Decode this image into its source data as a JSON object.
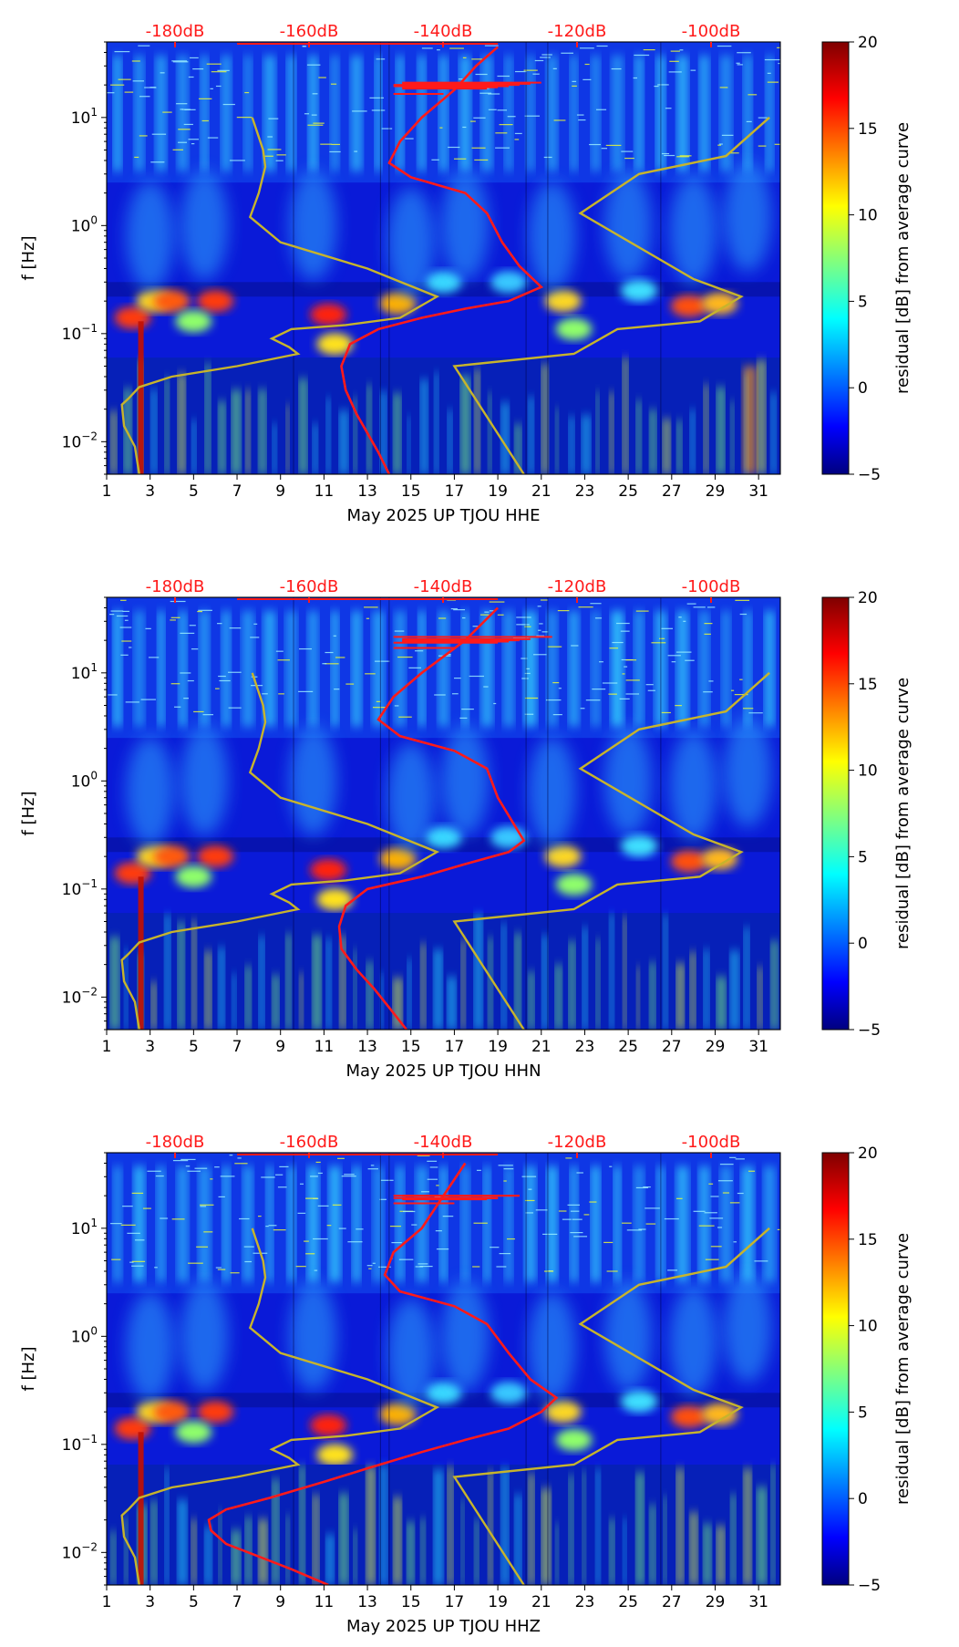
{
  "chart_data": [
    {
      "type": "heatmap",
      "xlabel": "May 2025 UP TJOU  HHE",
      "ylabel": "f [Hz]",
      "x_ticks": [
        "1",
        "3",
        "5",
        "7",
        "9",
        "11",
        "13",
        "15",
        "17",
        "19",
        "21",
        "23",
        "25",
        "27",
        "29",
        "31"
      ],
      "y_ticks": [
        "10^-2",
        "10^-1",
        "10^0",
        "10^1"
      ],
      "top_ticks": [
        "-180dB",
        "-160dB",
        "-140dB",
        "-120dB",
        "-100dB"
      ],
      "colorbar": {
        "label": "residual [dB] from average curve",
        "range": [
          -5,
          20
        ],
        "ticks": [
          "20",
          "15",
          "10",
          "5",
          "0",
          "−5"
        ]
      },
      "ylim": [
        0.005,
        50
      ],
      "xlim": [
        1,
        32
      ],
      "series": [
        {
          "color": "#ff1a1a",
          "points": [
            [
              14.0,
              0.005
            ],
            [
              13.5,
              0.008
            ],
            [
              13.0,
              0.012
            ],
            [
              12.5,
              0.018
            ],
            [
              12.0,
              0.03
            ],
            [
              11.8,
              0.05
            ],
            [
              12.2,
              0.08
            ],
            [
              13.5,
              0.11
            ],
            [
              15.5,
              0.14
            ],
            [
              17.5,
              0.17
            ],
            [
              19.5,
              0.2
            ],
            [
              21.0,
              0.27
            ],
            [
              20.0,
              0.42
            ],
            [
              19.2,
              0.7
            ],
            [
              18.5,
              1.3
            ],
            [
              17.5,
              2.0
            ],
            [
              15.0,
              2.8
            ],
            [
              14.0,
              3.8
            ],
            [
              14.5,
              6.0
            ],
            [
              15.5,
              10.0
            ],
            [
              17.0,
              18.0
            ],
            [
              18.0,
              30.0
            ],
            [
              19.0,
              45.0
            ]
          ],
          "spikes": [
            [
              5.5,
              19.5
            ],
            [
              7.0,
              16.5
            ],
            [
              9.0,
              20.0
            ],
            [
              12.0,
              18.5
            ],
            [
              16.0,
              21.0
            ],
            [
              22.0,
              19.0
            ],
            [
              25.0,
              20.5
            ],
            [
              32.0,
              19.5
            ]
          ]
        },
        {
          "color": "#c7b42c",
          "points": [
            [
              2.5,
              0.005
            ],
            [
              2.3,
              0.009
            ],
            [
              1.8,
              0.014
            ],
            [
              1.7,
              0.022
            ],
            [
              2.0,
              0.025
            ],
            [
              2.5,
              0.032
            ],
            [
              4.0,
              0.04
            ],
            [
              7.0,
              0.05
            ],
            [
              9.8,
              0.065
            ],
            [
              9.4,
              0.075
            ],
            [
              8.6,
              0.09
            ],
            [
              9.5,
              0.11
            ],
            [
              12.0,
              0.12
            ],
            [
              14.5,
              0.14
            ],
            [
              16.2,
              0.22
            ],
            [
              13.0,
              0.4
            ],
            [
              9.0,
              0.7
            ],
            [
              7.6,
              1.2
            ],
            [
              8.0,
              2.0
            ],
            [
              8.3,
              3.5
            ],
            [
              8.2,
              5.0
            ],
            [
              7.7,
              10.0
            ]
          ]
        },
        {
          "color": "#c7b42c",
          "points": [
            [
              20.2,
              0.005
            ],
            [
              17.0,
              0.05
            ],
            [
              22.5,
              0.065
            ],
            [
              24.5,
              0.11
            ],
            [
              28.3,
              0.13
            ],
            [
              30.2,
              0.22
            ],
            [
              28.0,
              0.32
            ],
            [
              22.8,
              1.3
            ],
            [
              25.5,
              3.0
            ],
            [
              29.5,
              4.4
            ],
            [
              31.5,
              10.0
            ]
          ]
        }
      ]
    },
    {
      "type": "heatmap",
      "xlabel": "May 2025 UP TJOU  HHN",
      "ylabel": "f [Hz]",
      "x_ticks": [
        "1",
        "3",
        "5",
        "7",
        "9",
        "11",
        "13",
        "15",
        "17",
        "19",
        "21",
        "23",
        "25",
        "27",
        "29",
        "31"
      ],
      "y_ticks": [
        "10^-2",
        "10^-1",
        "10^0",
        "10^1"
      ],
      "top_ticks": [
        "-180dB",
        "-160dB",
        "-140dB",
        "-120dB",
        "-100dB"
      ],
      "colorbar": {
        "label": "residual [dB] from average curve",
        "range": [
          -5,
          20
        ],
        "ticks": [
          "20",
          "15",
          "10",
          "5",
          "0",
          "−5"
        ]
      },
      "ylim": [
        0.005,
        50
      ],
      "xlim": [
        1,
        32
      ],
      "series": [
        {
          "color": "#ff1a1a",
          "points": [
            [
              14.8,
              0.005
            ],
            [
              14.0,
              0.008
            ],
            [
              13.3,
              0.012
            ],
            [
              12.5,
              0.018
            ],
            [
              11.8,
              0.028
            ],
            [
              11.7,
              0.045
            ],
            [
              12.0,
              0.07
            ],
            [
              13.0,
              0.1
            ],
            [
              15.5,
              0.13
            ],
            [
              17.5,
              0.17
            ],
            [
              19.5,
              0.22
            ],
            [
              20.2,
              0.28
            ],
            [
              19.8,
              0.38
            ],
            [
              19.0,
              0.7
            ],
            [
              18.5,
              1.3
            ],
            [
              17.0,
              1.9
            ],
            [
              14.5,
              2.6
            ],
            [
              13.5,
              3.7
            ],
            [
              14.2,
              6.0
            ],
            [
              15.5,
              10.0
            ],
            [
              17.5,
              20.0
            ],
            [
              19.0,
              40.0
            ]
          ],
          "spikes": [
            [
              7.0,
              21.5
            ],
            [
              9.0,
              19.0
            ],
            [
              10.0,
              17.0
            ],
            [
              16.0,
              19.5
            ],
            [
              22.0,
              20.0
            ],
            [
              25.0,
              20.5
            ],
            [
              32.0,
              19.5
            ]
          ]
        },
        {
          "color": "#c7b42c",
          "points": [
            [
              2.5,
              0.005
            ],
            [
              2.3,
              0.009
            ],
            [
              1.8,
              0.014
            ],
            [
              1.7,
              0.022
            ],
            [
              2.0,
              0.025
            ],
            [
              2.5,
              0.032
            ],
            [
              4.0,
              0.04
            ],
            [
              7.0,
              0.05
            ],
            [
              9.8,
              0.065
            ],
            [
              9.4,
              0.075
            ],
            [
              8.6,
              0.09
            ],
            [
              9.5,
              0.11
            ],
            [
              12.0,
              0.12
            ],
            [
              14.5,
              0.14
            ],
            [
              16.2,
              0.22
            ],
            [
              13.0,
              0.4
            ],
            [
              9.0,
              0.7
            ],
            [
              7.6,
              1.2
            ],
            [
              8.0,
              2.0
            ],
            [
              8.3,
              3.5
            ],
            [
              8.2,
              5.0
            ],
            [
              7.7,
              10.0
            ]
          ]
        },
        {
          "color": "#c7b42c",
          "points": [
            [
              20.2,
              0.005
            ],
            [
              17.0,
              0.05
            ],
            [
              22.5,
              0.065
            ],
            [
              24.5,
              0.11
            ],
            [
              28.3,
              0.13
            ],
            [
              30.2,
              0.22
            ],
            [
              28.0,
              0.32
            ],
            [
              22.8,
              1.3
            ],
            [
              25.5,
              3.0
            ],
            [
              29.5,
              4.4
            ],
            [
              31.5,
              10.0
            ]
          ]
        }
      ]
    },
    {
      "type": "heatmap",
      "xlabel": "May 2025 UP TJOU  HHZ",
      "ylabel": "f [Hz]",
      "x_ticks": [
        "1",
        "3",
        "5",
        "7",
        "9",
        "11",
        "13",
        "15",
        "17",
        "19",
        "21",
        "23",
        "25",
        "27",
        "29",
        "31"
      ],
      "y_ticks": [
        "10^-2",
        "10^-1",
        "10^0",
        "10^1"
      ],
      "top_ticks": [
        "-180dB",
        "-160dB",
        "-140dB",
        "-120dB",
        "-100dB"
      ],
      "colorbar": {
        "label": "residual [dB] from average curve",
        "range": [
          -5,
          20
        ],
        "ticks": [
          "20",
          "15",
          "10",
          "5",
          "0",
          "−5"
        ]
      },
      "ylim": [
        0.005,
        50
      ],
      "xlim": [
        1,
        32
      ],
      "series": [
        {
          "color": "#ff1a1a",
          "points": [
            [
              11.2,
              0.005
            ],
            [
              9.5,
              0.007
            ],
            [
              7.8,
              0.0095
            ],
            [
              6.5,
              0.012
            ],
            [
              5.8,
              0.016
            ],
            [
              5.7,
              0.02
            ],
            [
              6.5,
              0.025
            ],
            [
              8.5,
              0.032
            ],
            [
              11.0,
              0.045
            ],
            [
              13.0,
              0.06
            ],
            [
              15.5,
              0.085
            ],
            [
              17.5,
              0.11
            ],
            [
              19.5,
              0.14
            ],
            [
              21.0,
              0.2
            ],
            [
              21.7,
              0.27
            ],
            [
              20.5,
              0.4
            ],
            [
              19.5,
              0.7
            ],
            [
              18.5,
              1.3
            ],
            [
              17.0,
              1.9
            ],
            [
              14.5,
              2.6
            ],
            [
              13.8,
              3.7
            ],
            [
              14.2,
              6.0
            ],
            [
              15.5,
              10.0
            ],
            [
              16.5,
              20.0
            ],
            [
              17.5,
              40.0
            ]
          ],
          "spikes": [
            [
              6.5,
              19.0
            ],
            [
              7.0,
              20.0
            ],
            [
              10.0,
              17.0
            ],
            [
              16.0,
              18.5
            ],
            [
              22.0,
              19.0
            ],
            [
              25.0,
              20.0
            ],
            [
              32.0,
              19.0
            ]
          ]
        },
        {
          "color": "#c7b42c",
          "points": [
            [
              2.5,
              0.005
            ],
            [
              2.3,
              0.009
            ],
            [
              1.8,
              0.014
            ],
            [
              1.7,
              0.022
            ],
            [
              2.0,
              0.025
            ],
            [
              2.5,
              0.032
            ],
            [
              4.0,
              0.04
            ],
            [
              7.0,
              0.05
            ],
            [
              9.8,
              0.065
            ],
            [
              9.4,
              0.075
            ],
            [
              8.6,
              0.09
            ],
            [
              9.5,
              0.11
            ],
            [
              12.0,
              0.12
            ],
            [
              14.5,
              0.14
            ],
            [
              16.2,
              0.22
            ],
            [
              13.0,
              0.4
            ],
            [
              9.0,
              0.7
            ],
            [
              7.6,
              1.2
            ],
            [
              8.0,
              2.0
            ],
            [
              8.3,
              3.5
            ],
            [
              8.2,
              5.0
            ],
            [
              7.7,
              10.0
            ]
          ]
        },
        {
          "color": "#c7b42c",
          "points": [
            [
              20.2,
              0.005
            ],
            [
              17.0,
              0.05
            ],
            [
              22.5,
              0.065
            ],
            [
              24.5,
              0.11
            ],
            [
              28.3,
              0.13
            ],
            [
              30.2,
              0.22
            ],
            [
              28.0,
              0.32
            ],
            [
              22.8,
              1.3
            ],
            [
              25.5,
              3.0
            ],
            [
              29.5,
              4.4
            ],
            [
              31.5,
              10.0
            ]
          ]
        }
      ]
    }
  ]
}
